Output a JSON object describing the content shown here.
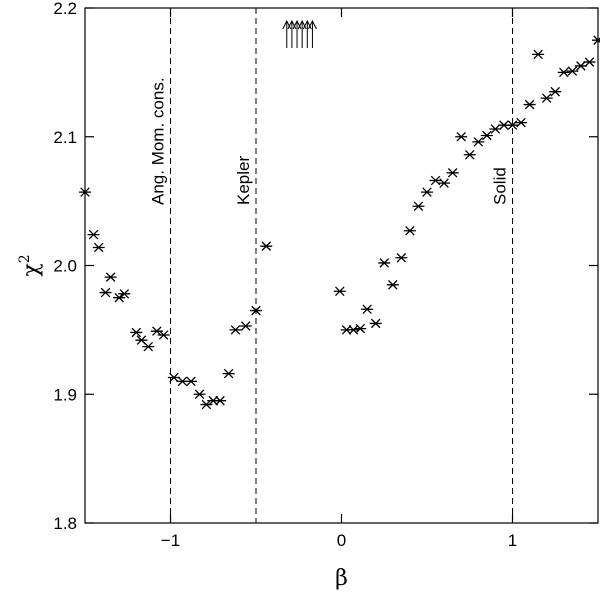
{
  "chart_data": {
    "type": "scatter",
    "xlabel": "β",
    "ylabel_base": "χ",
    "ylabel_sup": "2",
    "xlim": [
      -1.5,
      1.5
    ],
    "ylim": [
      1.8,
      2.2
    ],
    "xticks": [
      -1,
      0,
      1
    ],
    "xtick_labels": [
      "−1",
      "0",
      "1"
    ],
    "yticks": [
      1.8,
      1.9,
      2.0,
      2.1,
      2.2
    ],
    "ytick_labels": [
      "1.8",
      "1.9",
      "2.0",
      "2.1",
      "2.2"
    ],
    "grid": false,
    "marker": "asterisk",
    "color": "#000000",
    "vlines": [
      {
        "x": -1.0,
        "label": "Ang. Mom. cons."
      },
      {
        "x": -0.5,
        "label": "Kepler"
      },
      {
        "x": 1.0,
        "label": "Solid"
      }
    ],
    "arrows_x": [
      -0.32,
      -0.29,
      -0.26,
      -0.23,
      -0.2,
      -0.17
    ],
    "points": [
      [
        -1.5,
        2.057
      ],
      [
        -1.45,
        2.024
      ],
      [
        -1.42,
        2.014
      ],
      [
        -1.38,
        1.979
      ],
      [
        -1.35,
        1.991
      ],
      [
        -1.3,
        1.975
      ],
      [
        -1.27,
        1.978
      ],
      [
        -1.2,
        1.948
      ],
      [
        -1.17,
        1.942
      ],
      [
        -1.13,
        1.937
      ],
      [
        -1.08,
        1.949
      ],
      [
        -1.04,
        1.946
      ],
      [
        -0.98,
        1.913
      ],
      [
        -0.93,
        1.91
      ],
      [
        -0.88,
        1.91
      ],
      [
        -0.83,
        1.9
      ],
      [
        -0.79,
        1.892
      ],
      [
        -0.75,
        1.895
      ],
      [
        -0.71,
        1.895
      ],
      [
        -0.66,
        1.916
      ],
      [
        -0.62,
        1.95
      ],
      [
        -0.56,
        1.953
      ],
      [
        -0.5,
        1.965
      ],
      [
        -0.44,
        2.015
      ],
      [
        -0.01,
        1.98
      ],
      [
        0.03,
        1.95
      ],
      [
        0.07,
        1.95
      ],
      [
        0.11,
        1.951
      ],
      [
        0.15,
        1.966
      ],
      [
        0.2,
        1.955
      ],
      [
        0.25,
        2.002
      ],
      [
        0.3,
        1.985
      ],
      [
        0.35,
        2.006
      ],
      [
        0.4,
        2.027
      ],
      [
        0.45,
        2.046
      ],
      [
        0.5,
        2.057
      ],
      [
        0.55,
        2.066
      ],
      [
        0.6,
        2.064
      ],
      [
        0.65,
        2.072
      ],
      [
        0.7,
        2.1
      ],
      [
        0.75,
        2.086
      ],
      [
        0.8,
        2.096
      ],
      [
        0.85,
        2.101
      ],
      [
        0.9,
        2.106
      ],
      [
        0.95,
        2.109
      ],
      [
        1.0,
        2.109
      ],
      [
        1.05,
        2.111
      ],
      [
        1.1,
        2.125
      ],
      [
        1.15,
        2.164
      ],
      [
        1.2,
        2.13
      ],
      [
        1.25,
        2.135
      ],
      [
        1.3,
        2.15
      ],
      [
        1.35,
        2.151
      ],
      [
        1.4,
        2.155
      ],
      [
        1.45,
        2.158
      ],
      [
        1.5,
        2.175
      ]
    ]
  }
}
